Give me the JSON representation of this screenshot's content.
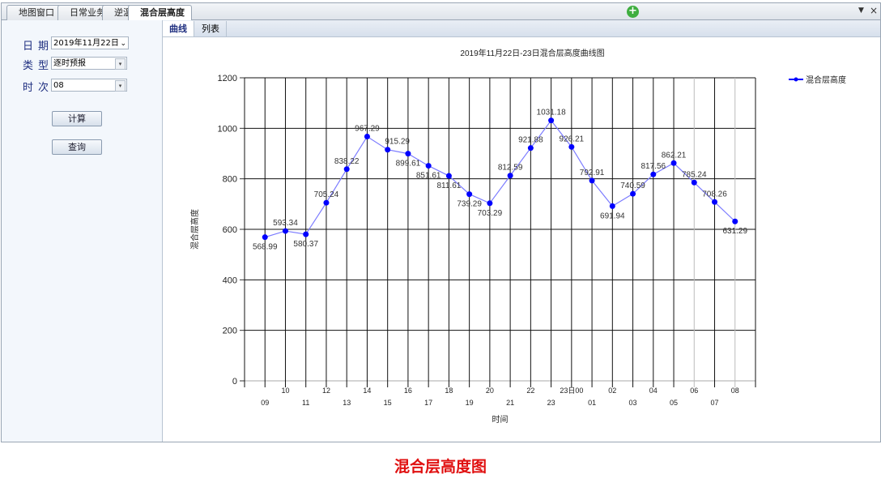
{
  "tabs": [
    {
      "label": "地图窗口"
    },
    {
      "label": "日常业务"
    },
    {
      "label": "逆温"
    },
    {
      "label": "混合层高度"
    }
  ],
  "add_icon": "plus-circle-icon",
  "form": {
    "date_label": "日期",
    "date_value": "2019年11月22日",
    "type_label": "类型",
    "type_value": "逐时预报",
    "time_label": "时次",
    "time_value": "08",
    "compute_button": "计算",
    "query_button": "查询"
  },
  "content_tabs": [
    {
      "label": "曲线"
    },
    {
      "label": "列表"
    }
  ],
  "caption": "混合层高度图",
  "chart_data": {
    "type": "line",
    "title": "2019年11月22日-23日混合层高度曲线图",
    "xlabel": "时间",
    "ylabel": "混合层高度",
    "categories": [
      "09",
      "10",
      "11",
      "12",
      "13",
      "14",
      "15",
      "16",
      "17",
      "18",
      "19",
      "20",
      "21",
      "22",
      "23",
      "23日00",
      "01",
      "02",
      "03",
      "04",
      "05",
      "06",
      "07",
      "08"
    ],
    "series": [
      {
        "name": "混合层高度",
        "color": "#0000ff",
        "values": [
          568.99,
          593.34,
          580.37,
          705.24,
          838.22,
          967.29,
          915.29,
          899.61,
          851.61,
          811.61,
          739.29,
          703.29,
          812.59,
          921.88,
          1031.18,
          926.21,
          792.91,
          691.94,
          740.59,
          817.56,
          862.21,
          785.24,
          708.26,
          631.29
        ]
      }
    ],
    "yticks": [
      0,
      200,
      400,
      600,
      800,
      1000,
      1200
    ],
    "ylim": [
      0,
      1200
    ],
    "grid": true,
    "legend": "top-right"
  }
}
